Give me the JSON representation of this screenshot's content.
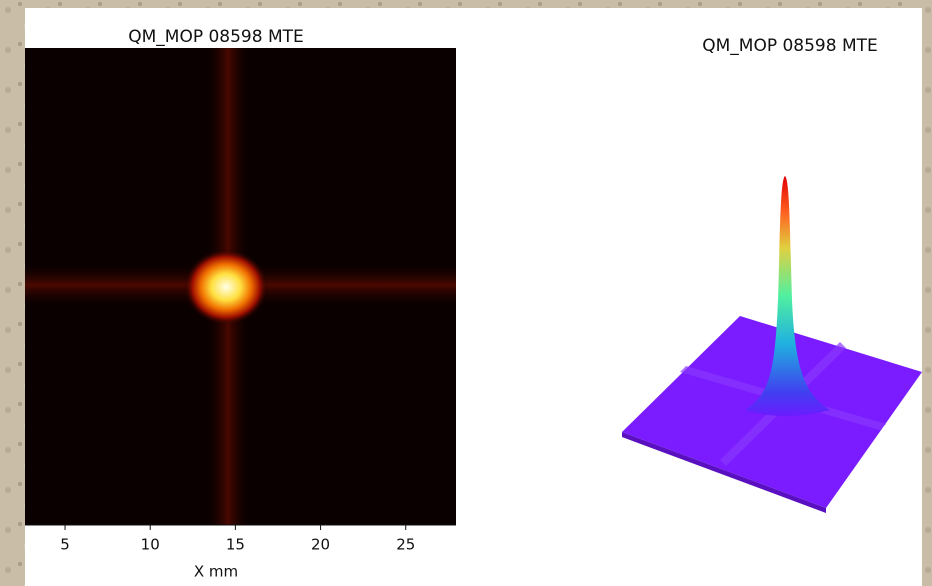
{
  "chart_data": [
    {
      "type": "heatmap",
      "title": "QM_MOP 08598 MTE",
      "xlabel": "X mm",
      "xlim": [
        2.65,
        27.95
      ],
      "xticks": [
        5,
        10,
        15,
        20,
        25
      ]
    },
    {
      "type": "surface3d",
      "title": "QM_MOP 08598 MTE"
    }
  ]
}
